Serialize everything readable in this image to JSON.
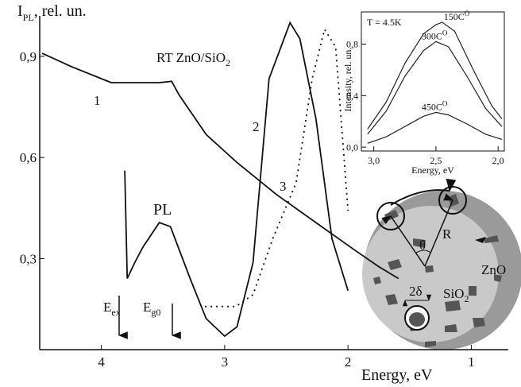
{
  "chart_data": [
    {
      "type": "line",
      "x_label": "Energy, eV",
      "y_label": {
        "main": "I",
        "sub": "PL",
        "rest": ", rel. un."
      },
      "xlim": [
        4.5,
        0.7
      ],
      "xticks": [
        4,
        3,
        2,
        1
      ],
      "ylim": [
        0.03,
        1.02
      ],
      "yticks": [
        {
          "value": 0.9,
          "label": "0,9"
        },
        {
          "value": 0.6,
          "label": "0,6"
        },
        {
          "value": 0.3,
          "label": "0,3"
        }
      ],
      "annotations": {
        "sample": {
          "main": "RT  ZnO/SiO",
          "sub": "2"
        },
        "c1": "1",
        "c2": "2",
        "c3": "3",
        "pl": "PL",
        "eex": {
          "main": "E",
          "sub": "ex"
        },
        "eg0": {
          "main": "E",
          "sub": "g0"
        }
      },
      "series": [
        {
          "color": "#111111",
          "dash": false,
          "x": [
            4.48,
            4.24,
            3.92,
            3.53,
            3.43,
            3.37,
            3.15,
            2.9,
            2.58,
            2.26,
            1.94,
            1.75,
            1.59
          ],
          "values": [
            0.909,
            0.869,
            0.822,
            0.822,
            0.826,
            0.786,
            0.668,
            0.585,
            0.49,
            0.407,
            0.324,
            0.276,
            0.241
          ]
        },
        {
          "color": "#111111",
          "dash": false,
          "x": [
            3.81,
            3.79,
            3.73,
            3.66,
            3.53,
            3.44,
            3.28,
            3.15,
            3.0,
            2.9,
            2.77,
            2.64,
            2.47,
            2.39,
            2.26,
            2.13,
            2.0
          ],
          "values": [
            0.561,
            0.241,
            0.288,
            0.336,
            0.407,
            0.395,
            0.241,
            0.122,
            0.07,
            0.098,
            0.288,
            0.834,
            1.0,
            0.952,
            0.715,
            0.359,
            0.205
          ]
        },
        {
          "color": "#111111",
          "dash": true,
          "x": [
            3.16,
            2.91,
            2.77,
            2.61,
            2.42,
            2.29,
            2.19,
            2.1,
            2.0
          ],
          "values": [
            0.158,
            0.158,
            0.193,
            0.359,
            0.525,
            0.834,
            0.98,
            0.928,
            0.442
          ]
        }
      ]
    },
    {
      "type": "line",
      "x_label": "Energy, eV",
      "y_label": "Intensity, rel. un.",
      "note": "T = 4.5K",
      "xlim": [
        3.1,
        1.95
      ],
      "xticks": [
        {
          "value": 3.0,
          "label": "3,0"
        },
        {
          "value": 2.5,
          "label": "2,5"
        },
        {
          "value": 2.0,
          "label": "2,0"
        }
      ],
      "ylim": [
        -0.03,
        1.05
      ],
      "yticks": [
        {
          "value": 0.0,
          "label": "0,0"
        },
        {
          "value": 0.4,
          "label": "0,4"
        },
        {
          "value": 0.8,
          "label": "0,8"
        }
      ],
      "series": [
        {
          "name": "150C",
          "sup": "O",
          "color": "#222222",
          "x": [
            3.05,
            2.9,
            2.75,
            2.6,
            2.5,
            2.45,
            2.35,
            2.2,
            2.05,
            1.97
          ],
          "values": [
            0.14,
            0.35,
            0.65,
            0.88,
            0.95,
            0.97,
            0.9,
            0.6,
            0.32,
            0.22
          ]
        },
        {
          "name": "300C",
          "sup": "O",
          "color": "#222222",
          "x": [
            3.05,
            2.9,
            2.75,
            2.6,
            2.5,
            2.4,
            2.25,
            2.1,
            1.97
          ],
          "values": [
            0.1,
            0.28,
            0.55,
            0.75,
            0.82,
            0.78,
            0.55,
            0.3,
            0.16
          ]
        },
        {
          "name": "450C",
          "sup": "O",
          "color": "#222222",
          "x": [
            3.05,
            2.9,
            2.75,
            2.6,
            2.5,
            2.4,
            2.25,
            2.1,
            1.97
          ],
          "values": [
            0.03,
            0.08,
            0.16,
            0.24,
            0.27,
            0.25,
            0.18,
            0.1,
            0.06
          ]
        }
      ]
    }
  ],
  "diagram": {
    "r": "R",
    "theta": "θ",
    "zno": "ZnO",
    "sio2": {
      "main": "SiO",
      "sub": "2"
    },
    "delta": "2δ"
  }
}
